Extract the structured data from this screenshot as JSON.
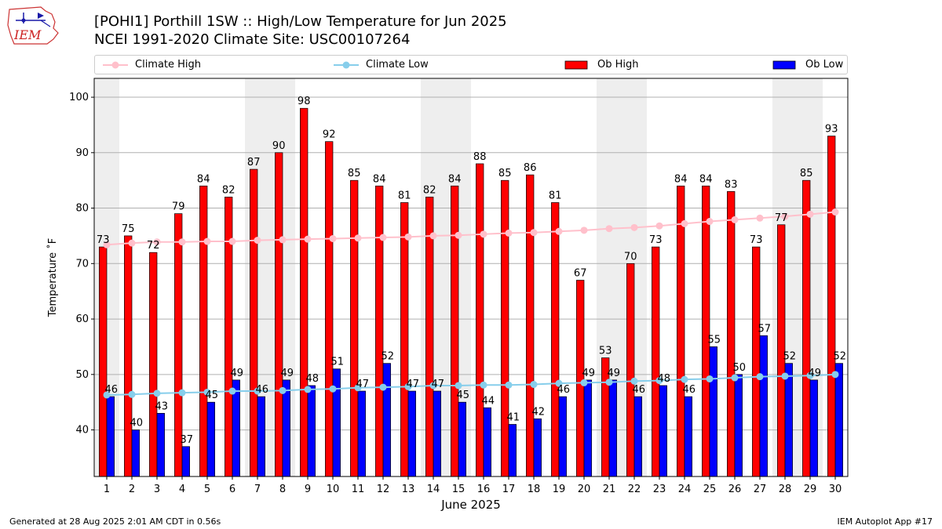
{
  "header": {
    "title_line1": "[POHI1] Porthill 1SW :: High/Low Temperature for Jun 2025",
    "title_line2": "NCEI 1991-2020 Climate Site: USC00107264",
    "logo_text": "IEM"
  },
  "footer": {
    "generated": "Generated at 28 Aug 2025 2:01 AM CDT in 0.56s",
    "app": "IEM Autoplot App #17"
  },
  "colors": {
    "ob_high": "#ff0000",
    "ob_low": "#0000ff",
    "climate_high": "#ffc0cb",
    "climate_low": "#87ceeb",
    "weekend_shade": "#eeeeee"
  },
  "chart_data": {
    "type": "bar",
    "xlabel": "June 2025",
    "ylabel": "Temperature ˚F",
    "ylim": [
      31.6,
      103.4
    ],
    "yticks": [
      40,
      50,
      60,
      70,
      80,
      90,
      100
    ],
    "grid": "horizontal",
    "legend_placement": "top",
    "categories": [
      "1",
      "2",
      "3",
      "4",
      "5",
      "6",
      "7",
      "8",
      "9",
      "10",
      "11",
      "12",
      "13",
      "14",
      "15",
      "16",
      "17",
      "18",
      "19",
      "20",
      "21",
      "22",
      "23",
      "24",
      "25",
      "26",
      "27",
      "28",
      "29",
      "30"
    ],
    "shaded_days": [
      1,
      7,
      8,
      14,
      15,
      21,
      22,
      28,
      29
    ],
    "series": [
      {
        "name": "Ob High",
        "kind": "bar",
        "values": [
          73,
          75,
          72,
          79,
          84,
          82,
          87,
          90,
          98,
          92,
          85,
          84,
          81,
          82,
          84,
          88,
          85,
          86,
          81,
          67,
          53,
          70,
          73,
          84,
          84,
          83,
          73,
          77,
          85,
          93
        ]
      },
      {
        "name": "Ob Low",
        "kind": "bar",
        "values": [
          46,
          40,
          43,
          37,
          45,
          49,
          46,
          49,
          48,
          51,
          47,
          52,
          47,
          47,
          45,
          44,
          41,
          42,
          46,
          49,
          49,
          46,
          48,
          46,
          55,
          50,
          57,
          52,
          49,
          52
        ]
      },
      {
        "name": "Climate High",
        "kind": "line",
        "values": [
          73.4,
          73.7,
          73.9,
          73.9,
          74.0,
          74.0,
          74.2,
          74.3,
          74.4,
          74.5,
          74.6,
          74.7,
          74.8,
          75.0,
          75.1,
          75.3,
          75.5,
          75.6,
          75.8,
          76.0,
          76.3,
          76.5,
          76.8,
          77.2,
          77.6,
          77.9,
          78.2,
          78.5,
          78.9,
          79.3
        ]
      },
      {
        "name": "Climate Low",
        "kind": "line",
        "values": [
          46.3,
          46.4,
          46.6,
          46.7,
          46.8,
          47.0,
          47.0,
          47.1,
          47.3,
          47.4,
          47.6,
          47.7,
          47.8,
          48.0,
          48.0,
          48.1,
          48.1,
          48.2,
          48.4,
          48.5,
          48.6,
          48.8,
          48.9,
          49.1,
          49.2,
          49.4,
          49.6,
          49.7,
          49.8,
          50.0
        ]
      }
    ]
  }
}
